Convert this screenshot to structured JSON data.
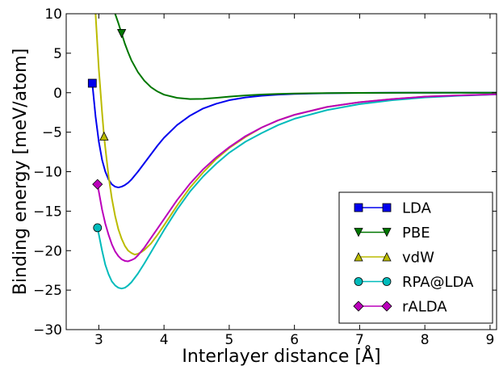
{
  "chart_data": {
    "type": "line",
    "xlabel": "Interlayer distance [Å]",
    "ylabel": "Binding energy [meV/atom]",
    "xlim": [
      2.5,
      9.1
    ],
    "ylim": [
      -30,
      10
    ],
    "xticks": [
      3,
      4,
      5,
      6,
      7,
      8,
      9
    ],
    "yticks": [
      -30,
      -25,
      -20,
      -15,
      -10,
      -5,
      0,
      5,
      10
    ],
    "grid": false,
    "legend_position": "lower-right",
    "series": [
      {
        "name": "LDA",
        "color": "#0000ee",
        "marker": "square",
        "marker_point": [
          2.9,
          1.2
        ],
        "x": [
          2.9,
          2.95,
          3.0,
          3.05,
          3.1,
          3.15,
          3.2,
          3.25,
          3.3,
          3.35,
          3.4,
          3.45,
          3.5,
          3.6,
          3.7,
          3.8,
          3.9,
          4.0,
          4.2,
          4.4,
          4.6,
          4.8,
          5.0,
          5.25,
          5.5,
          5.75,
          6.0,
          6.5,
          7.0,
          7.5,
          8.0,
          8.5,
          9.1
        ],
        "y": [
          1.2,
          -3.0,
          -6.2,
          -8.5,
          -10.0,
          -11.0,
          -11.6,
          -11.9,
          -12.0,
          -11.9,
          -11.7,
          -11.4,
          -11.0,
          -10.0,
          -8.9,
          -7.8,
          -6.7,
          -5.7,
          -4.1,
          -2.9,
          -2.0,
          -1.4,
          -0.95,
          -0.6,
          -0.38,
          -0.24,
          -0.15,
          -0.06,
          -0.02,
          0.0,
          0.0,
          0.0,
          0.0
        ]
      },
      {
        "name": "PBE",
        "color": "#007700",
        "marker": "triangle-down",
        "marker_point": [
          3.35,
          7.5
        ],
        "x": [
          3.25,
          3.3,
          3.35,
          3.4,
          3.45,
          3.5,
          3.6,
          3.7,
          3.8,
          3.9,
          4.0,
          4.2,
          4.4,
          4.6,
          4.8,
          5.0,
          5.25,
          5.5,
          5.75,
          6.0,
          6.5,
          7.0,
          7.5,
          8.0,
          8.5,
          9.1
        ],
        "y": [
          10.0,
          8.8,
          7.5,
          6.2,
          5.1,
          4.1,
          2.6,
          1.5,
          0.7,
          0.15,
          -0.25,
          -0.65,
          -0.8,
          -0.78,
          -0.65,
          -0.5,
          -0.35,
          -0.23,
          -0.15,
          -0.1,
          -0.05,
          -0.02,
          -0.01,
          0.0,
          0.0,
          0.0
        ]
      },
      {
        "name": "vdW",
        "color": "#bbbb00",
        "marker": "triangle-up",
        "marker_point": [
          3.08,
          -5.5
        ],
        "x": [
          2.95,
          3.0,
          3.05,
          3.08,
          3.1,
          3.15,
          3.2,
          3.25,
          3.3,
          3.35,
          3.4,
          3.45,
          3.5,
          3.55,
          3.6,
          3.65,
          3.7,
          3.8,
          3.9,
          4.0,
          4.2,
          4.4,
          4.6,
          4.8,
          5.0,
          5.25,
          5.5,
          5.75,
          6.0,
          6.5,
          7.0,
          7.5,
          8.0,
          8.5,
          9.1
        ],
        "y": [
          10.0,
          3.0,
          -2.5,
          -5.5,
          -7.0,
          -10.6,
          -13.4,
          -15.6,
          -17.3,
          -18.5,
          -19.4,
          -20.0,
          -20.3,
          -20.5,
          -20.4,
          -20.2,
          -19.9,
          -19.1,
          -18.0,
          -16.8,
          -14.3,
          -12.0,
          -10.1,
          -8.4,
          -7.0,
          -5.6,
          -4.4,
          -3.5,
          -2.8,
          -1.8,
          -1.2,
          -0.8,
          -0.5,
          -0.35,
          -0.2
        ]
      },
      {
        "name": "RPA@LDA",
        "color": "#00bbbb",
        "marker": "circle",
        "marker_point": [
          2.98,
          -17.1
        ],
        "x": [
          2.98,
          3.05,
          3.1,
          3.15,
          3.2,
          3.25,
          3.3,
          3.35,
          3.4,
          3.45,
          3.5,
          3.6,
          3.7,
          3.8,
          3.9,
          4.0,
          4.2,
          4.4,
          4.6,
          4.8,
          5.0,
          5.25,
          5.5,
          5.75,
          6.0,
          6.5,
          7.0,
          7.5,
          8.0,
          8.5,
          9.1
        ],
        "y": [
          -17.1,
          -20.0,
          -21.8,
          -23.0,
          -23.9,
          -24.4,
          -24.7,
          -24.8,
          -24.7,
          -24.4,
          -24.0,
          -22.9,
          -21.6,
          -20.2,
          -18.8,
          -17.4,
          -14.8,
          -12.5,
          -10.6,
          -9.0,
          -7.6,
          -6.2,
          -5.1,
          -4.1,
          -3.3,
          -2.2,
          -1.45,
          -0.95,
          -0.6,
          -0.4,
          -0.22
        ]
      },
      {
        "name": "rALDA",
        "color": "#bb00bb",
        "marker": "diamond",
        "marker_point": [
          2.98,
          -11.6
        ],
        "x": [
          2.98,
          3.05,
          3.1,
          3.15,
          3.2,
          3.25,
          3.3,
          3.35,
          3.4,
          3.45,
          3.5,
          3.55,
          3.6,
          3.7,
          3.8,
          3.9,
          4.0,
          4.2,
          4.4,
          4.6,
          4.8,
          5.0,
          5.25,
          5.5,
          5.75,
          6.0,
          6.5,
          7.0,
          7.5,
          8.0,
          8.5,
          9.1
        ],
        "y": [
          -11.6,
          -14.8,
          -16.6,
          -18.0,
          -19.2,
          -20.1,
          -20.7,
          -21.1,
          -21.3,
          -21.35,
          -21.2,
          -21.0,
          -20.6,
          -19.6,
          -18.4,
          -17.2,
          -16.0,
          -13.6,
          -11.5,
          -9.7,
          -8.2,
          -6.9,
          -5.5,
          -4.4,
          -3.5,
          -2.8,
          -1.8,
          -1.2,
          -0.8,
          -0.5,
          -0.35,
          -0.2
        ]
      }
    ]
  }
}
